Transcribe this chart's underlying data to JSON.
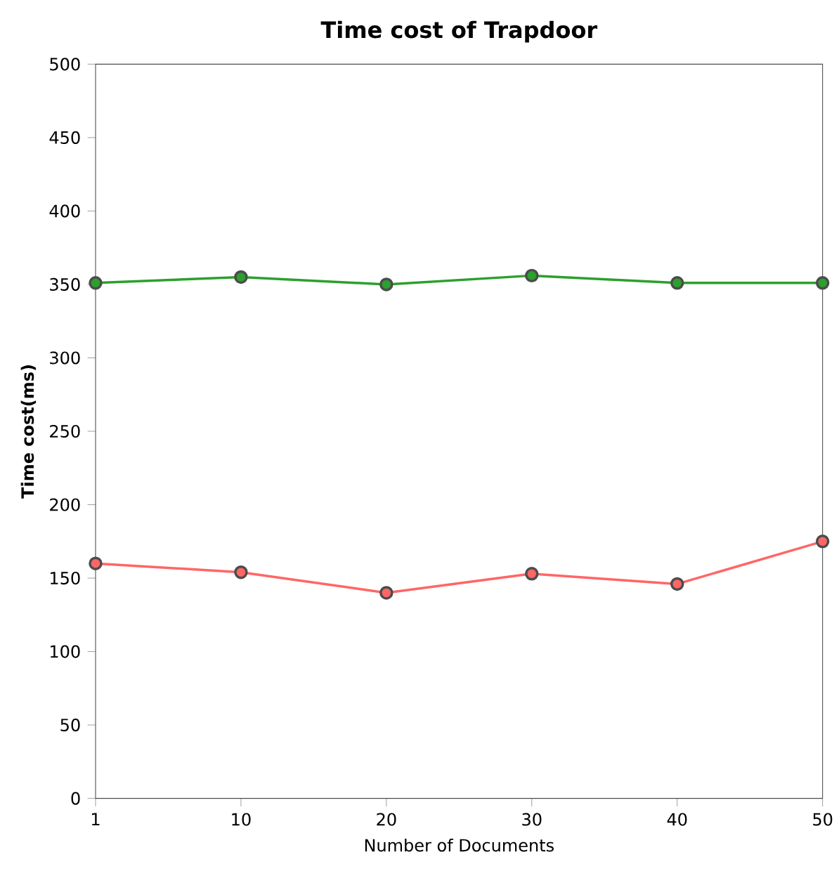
{
  "chart_data": {
    "type": "line",
    "title": "Time cost of Trapdoor",
    "xlabel": "Number of Documents",
    "ylabel": "Time cost(ms)",
    "categories": [
      "1",
      "10",
      "20",
      "30",
      "40",
      "50"
    ],
    "series": [
      {
        "color": "#2ca02c",
        "values": [
          351,
          355,
          350,
          356,
          351,
          351
        ]
      },
      {
        "color": "#ff6666",
        "values": [
          160,
          154,
          140,
          153,
          146,
          175
        ]
      }
    ],
    "ylim": [
      0,
      500
    ],
    "yticks": [
      0,
      50,
      100,
      150,
      200,
      250,
      300,
      350,
      400,
      450,
      500
    ],
    "marker": "circle",
    "line_style": "solid"
  }
}
